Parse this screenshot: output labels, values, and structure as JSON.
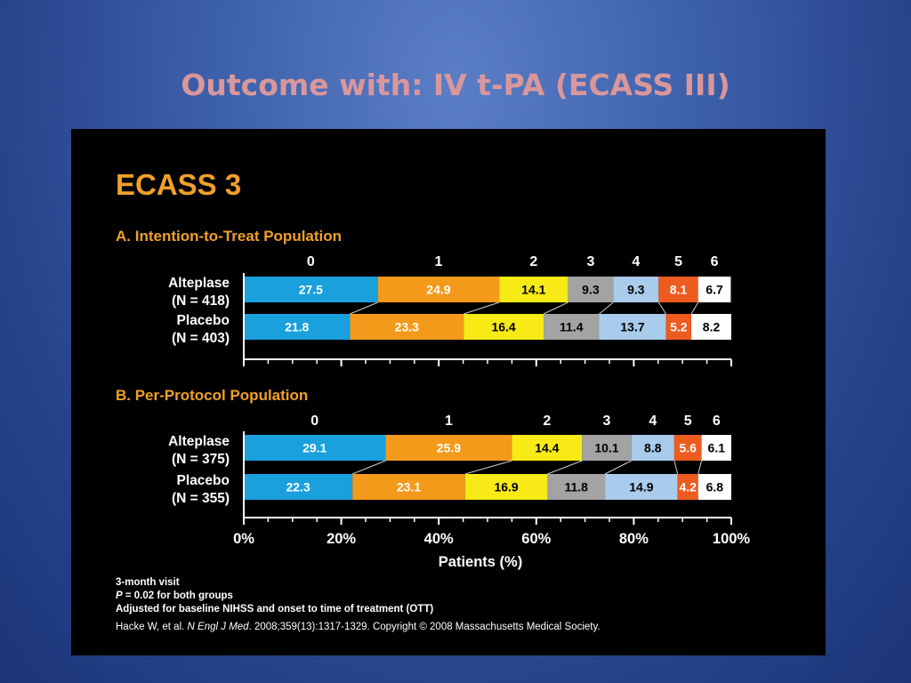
{
  "slide": {
    "title": "Outcome with: IV t-PA (ECASS III)"
  },
  "figure": {
    "title": "ECASS 3",
    "panelA_title": "A. Intention-to-Treat Population",
    "panelB_title": "B. Per-Protocol Population",
    "footnotes": {
      "line1": "3-month visit",
      "line2_italic": "P",
      "line2_rest": " = 0.02 for both groups",
      "line3": "Adjusted for baseline NIHSS and onset to time of treatment (OTT)",
      "line4_pre": "Hacke W, et al. ",
      "line4_italic": "N Engl J Med",
      "line4_post": ". 2008;359(13):1317-1329. Copyright © 2008 Massachusetts Medical Society."
    }
  },
  "chart_data": [
    {
      "type": "bar",
      "orientation": "horizontal-stacked-100",
      "panel": "A",
      "title": "A. Intention-to-Treat Population",
      "categories": [
        "0",
        "1",
        "2",
        "3",
        "4",
        "5",
        "6"
      ],
      "groups": [
        {
          "name": "Alteplase",
          "n_label": "(N = 418)",
          "values": [
            27.5,
            24.9,
            14.1,
            9.3,
            9.3,
            8.1,
            6.7
          ]
        },
        {
          "name": "Placebo",
          "n_label": "(N = 403)",
          "values": [
            21.8,
            23.3,
            16.4,
            11.4,
            13.7,
            5.2,
            8.2
          ]
        }
      ],
      "colors": [
        "#1aa0dc",
        "#f49a1a",
        "#f7ea16",
        "#a3a3a3",
        "#a9cbec",
        "#ee5b1e",
        "#ffffff"
      ],
      "label_colors": [
        "#ffffff",
        "#ffffff",
        "#000000",
        "#000000",
        "#000000",
        "#ffffff",
        "#000000"
      ]
    },
    {
      "type": "bar",
      "orientation": "horizontal-stacked-100",
      "panel": "B",
      "title": "B. Per-Protocol Population",
      "categories": [
        "0",
        "1",
        "2",
        "3",
        "4",
        "5",
        "6"
      ],
      "groups": [
        {
          "name": "Alteplase",
          "n_label": "(N = 375)",
          "values": [
            29.1,
            25.9,
            14.4,
            10.1,
            8.8,
            5.6,
            6.1
          ]
        },
        {
          "name": "Placebo",
          "n_label": "(N = 355)",
          "values": [
            22.3,
            23.1,
            16.9,
            11.8,
            14.9,
            4.2,
            6.8
          ]
        }
      ],
      "colors": [
        "#1aa0dc",
        "#f49a1a",
        "#f7ea16",
        "#a3a3a3",
        "#a9cbec",
        "#ee5b1e",
        "#ffffff"
      ],
      "label_colors": [
        "#ffffff",
        "#ffffff",
        "#000000",
        "#000000",
        "#000000",
        "#ffffff",
        "#000000"
      ],
      "x_axis": {
        "label": "Patients (%)",
        "ticks": [
          "0%",
          "20%",
          "40%",
          "60%",
          "80%",
          "100%"
        ],
        "range": [
          0,
          100
        ]
      }
    }
  ]
}
